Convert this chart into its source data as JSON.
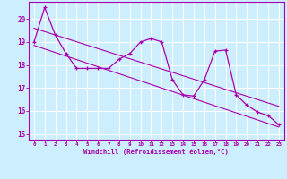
{
  "xlabel": "Windchill (Refroidissement éolien,°C)",
  "bg_color": "#cceeff",
  "line_color": "#aa00aa",
  "grid_color": "#aaddcc",
  "xlim": [
    -0.5,
    23.5
  ],
  "ylim": [
    14.75,
    20.75
  ],
  "yticks": [
    15,
    16,
    17,
    18,
    19,
    20
  ],
  "xticks": [
    0,
    1,
    2,
    3,
    4,
    5,
    6,
    7,
    8,
    9,
    10,
    11,
    12,
    13,
    14,
    15,
    16,
    17,
    18,
    19,
    20,
    21,
    22,
    23
  ],
  "data_x": [
    0,
    1,
    2,
    3,
    4,
    5,
    6,
    7,
    8,
    9,
    10,
    11,
    12,
    13,
    14,
    15,
    16,
    17,
    18,
    19,
    20,
    21,
    22,
    23
  ],
  "data_y": [
    19.0,
    20.5,
    19.3,
    18.5,
    17.85,
    17.85,
    17.85,
    17.85,
    18.25,
    18.5,
    19.0,
    19.15,
    19.0,
    17.35,
    16.7,
    16.65,
    17.35,
    18.6,
    18.65,
    16.7,
    16.25,
    15.95,
    15.8,
    15.4
  ],
  "trend1_x": [
    0,
    23
  ],
  "trend1_y": [
    19.6,
    16.2
  ],
  "trend2_x": [
    0,
    23
  ],
  "trend2_y": [
    18.85,
    15.3
  ]
}
